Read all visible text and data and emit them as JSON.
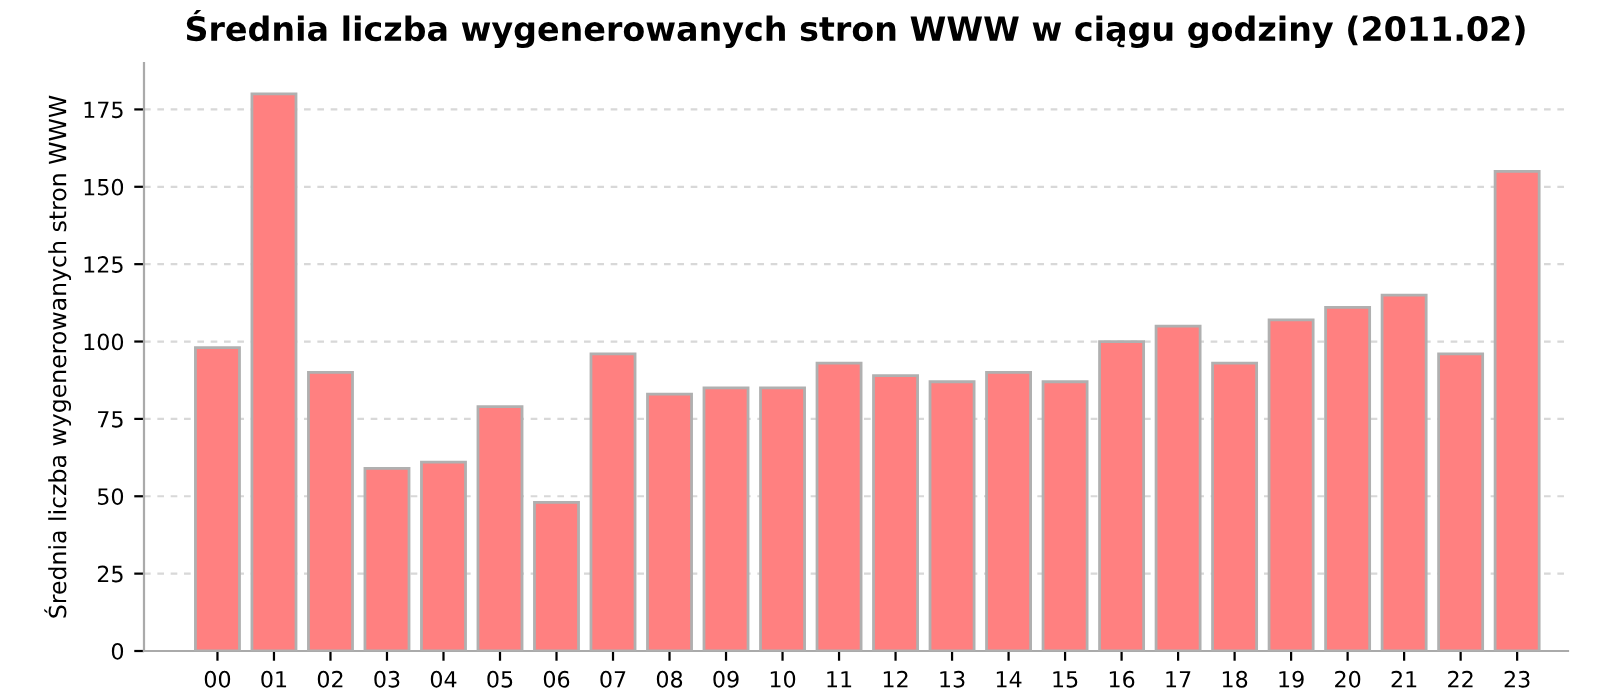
{
  "chart_data": {
    "type": "bar",
    "title": "Średnia liczba wygenerowanych stron WWW w ciągu godziny (2011.02)",
    "ylabel": "Średnia liczba wygenerowanych stron WWW",
    "categories": [
      "00",
      "01",
      "02",
      "03",
      "04",
      "05",
      "06",
      "07",
      "08",
      "09",
      "10",
      "11",
      "12",
      "13",
      "14",
      "15",
      "16",
      "17",
      "18",
      "19",
      "20",
      "21",
      "22",
      "23"
    ],
    "values": [
      98,
      180,
      90,
      59,
      61,
      79,
      48,
      96,
      83,
      85,
      85,
      93,
      89,
      87,
      90,
      87,
      100,
      105,
      93,
      107,
      111,
      115,
      96,
      155
    ],
    "color": "#ff8080",
    "ylim": [
      0,
      190
    ],
    "yticks": [
      0,
      25,
      50,
      75,
      100,
      125,
      150,
      175
    ],
    "grid": "y"
  }
}
